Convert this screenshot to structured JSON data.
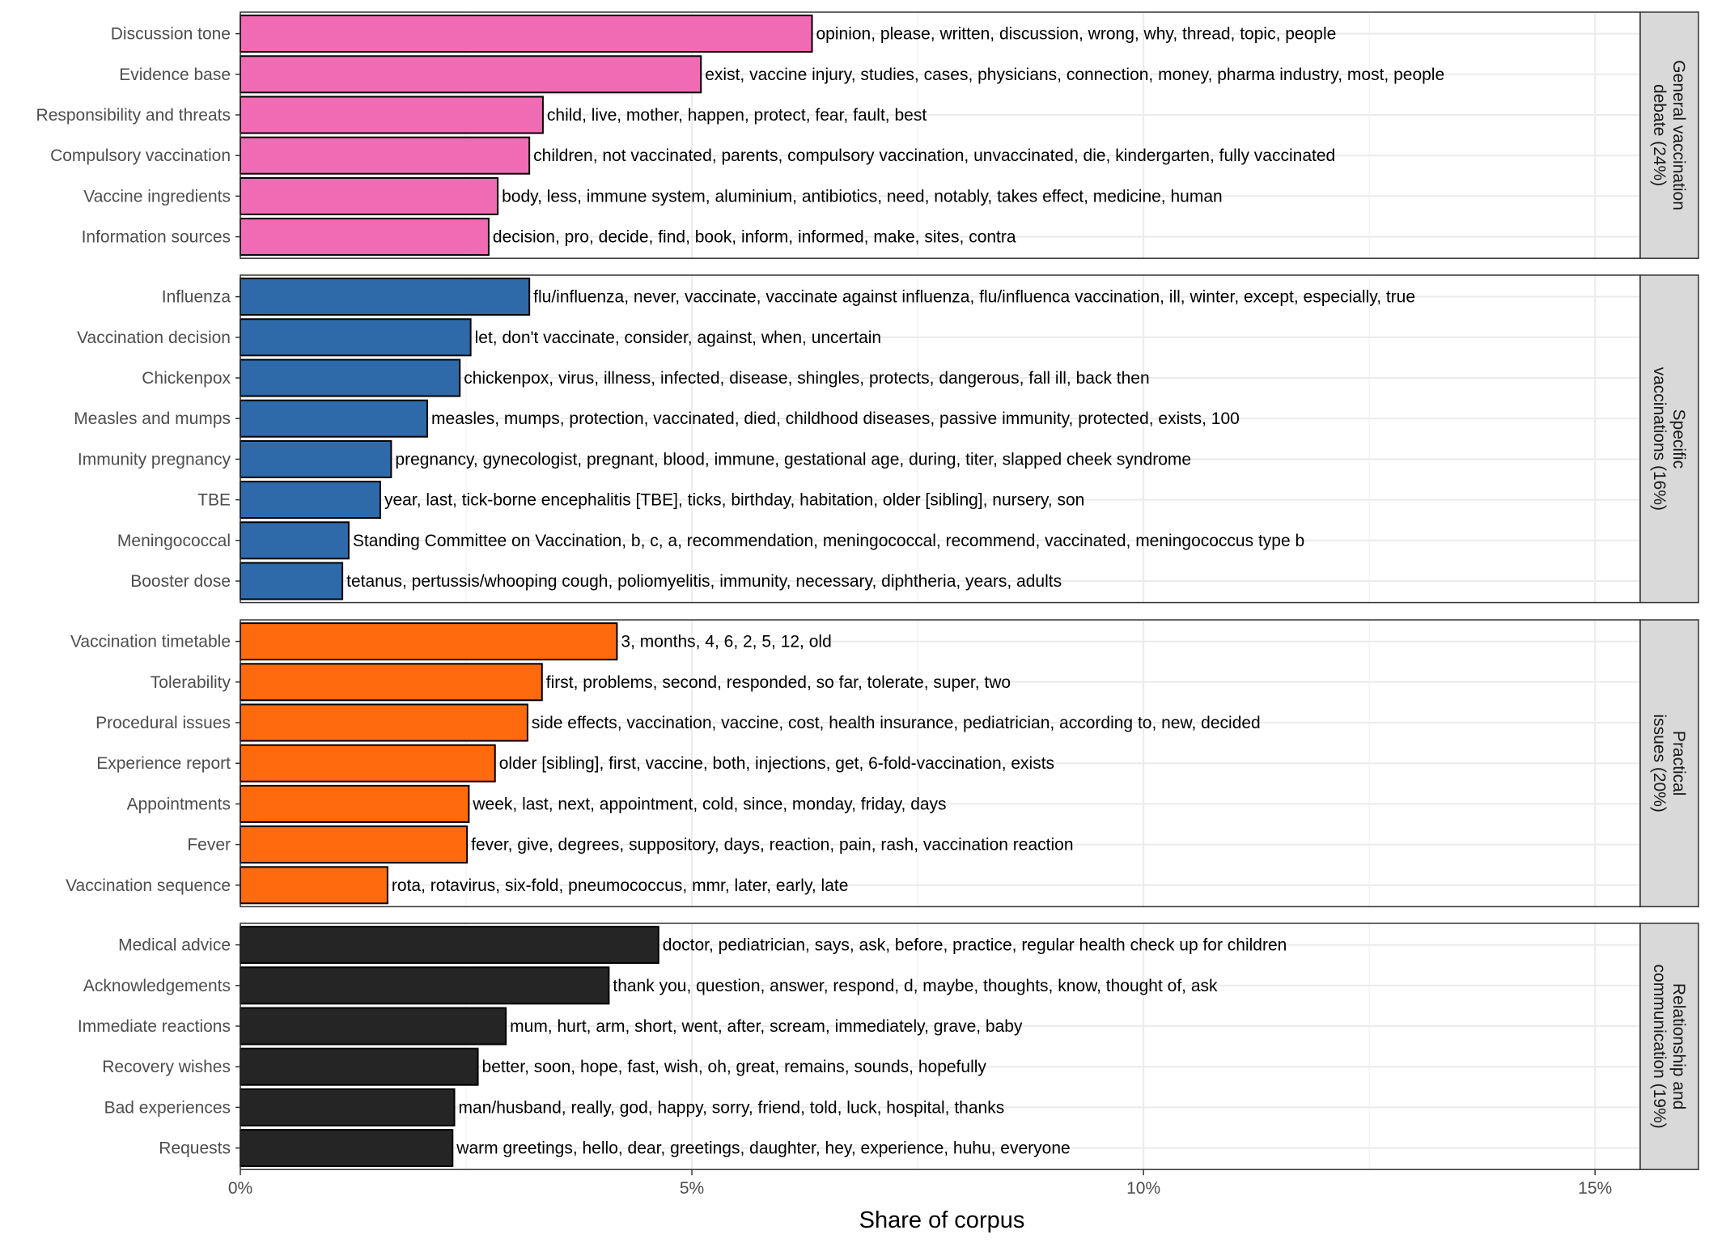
{
  "chart_data": {
    "type": "bar",
    "orientation": "horizontal",
    "xlabel": "Share of corpus",
    "xlim": [
      0,
      15.5
    ],
    "xticks": [
      0,
      5,
      10,
      15
    ],
    "xtick_labels": [
      "0%",
      "5%",
      "10%",
      "15%"
    ],
    "grid": true,
    "panels": [
      {
        "name": "General vaccination debate (24%)",
        "strip_lines": [
          "General vaccination",
          "debate (24%)"
        ],
        "color": "#F06BB3",
        "categories": [
          "Discussion tone",
          "Evidence base",
          "Responsibility and threats",
          "Compulsory vaccination",
          "Vaccine ingredients",
          "Information sources"
        ],
        "values": [
          6.33,
          5.1,
          3.35,
          3.2,
          2.85,
          2.75
        ],
        "labels": [
          "opinion, please, written, discussion, wrong, why, thread, topic, people",
          "exist, vaccine injury, studies, cases, physicians, connection, money, pharma industry, most, people",
          "child, live, mother, happen, protect, fear, fault, best",
          "children, not vaccinated, parents, compulsory vaccination, unvaccinated, die, kindergarten, fully vaccinated",
          "body, less, immune system, aluminium, antibiotics, need, notably, takes effect, medicine, human",
          "decision, pro, decide, find, book, inform, informed, make, sites, contra"
        ]
      },
      {
        "name": "Specific vaccinations (16%)",
        "strip_lines": [
          "Specific",
          "vaccinations (16%)"
        ],
        "color": "#2E6AAA",
        "categories": [
          "Influenza",
          "Vaccination decision",
          "Chickenpox",
          "Measles and mumps",
          "Immunity pregnancy",
          "TBE",
          "Meningococcal",
          "Booster dose"
        ],
        "values": [
          3.2,
          2.55,
          2.43,
          2.07,
          1.67,
          1.55,
          1.2,
          1.13
        ],
        "labels": [
          "flu/influenza, never, vaccinate, vaccinate against influenza, flu/influenca vaccination, ill, winter, except, especially, true",
          "let, don't vaccinate, consider, against, when, uncertain",
          "chickenpox, virus, illness, infected, disease, shingles, protects, dangerous, fall ill, back then",
          "measles, mumps, protection, vaccinated, died, childhood diseases, passive immunity, protected, exists, 100",
          "pregnancy, gynecologist, pregnant, blood, immune, gestational age, during, titer, slapped cheek syndrome",
          "year, last, tick-borne encephalitis [TBE], ticks, birthday, habitation, older [sibling], nursery, son",
          "Standing Committee on Vaccination, b, c, a, recommendation, meningococcal, recommend, vaccinated, meningococcus type b",
          "tetanus, pertussis/whooping cough, poliomyelitis, immunity, necessary, diphtheria, years, adults"
        ]
      },
      {
        "name": "Practical issues (20%)",
        "strip_lines": [
          "Practical",
          "issues (20%)"
        ],
        "color": "#FF6A0E",
        "categories": [
          "Vaccination timetable",
          "Tolerability",
          "Procedural issues",
          "Experience report",
          "Appointments",
          "Fever",
          "Vaccination sequence"
        ],
        "values": [
          4.17,
          3.34,
          3.18,
          2.82,
          2.53,
          2.51,
          1.63
        ],
        "labels": [
          "3, months, 4, 6, 2, 5, 12, old",
          "first, problems, second, responded, so far, tolerate, super, two",
          "side effects, vaccination, vaccine, cost, health insurance, pediatrician, according to, new, decided",
          "older [sibling], first, vaccine, both, injections, get, 6-fold-vaccination, exists",
          "week, last, next, appointment, cold, since, monday, friday, days",
          "fever, give, degrees, suppository, days, reaction, pain, rash, vaccination reaction",
          "rota, rotavirus, six-fold, pneumococcus, mmr, later, early, late"
        ]
      },
      {
        "name": "Relationship and communication (19%)",
        "strip_lines": [
          "Relationship and",
          "communication (19%)"
        ],
        "color": "#252525",
        "categories": [
          "Medical advice",
          "Acknowledgements",
          "Immediate reactions",
          "Recovery wishes",
          "Bad experiences",
          "Requests"
        ],
        "values": [
          4.63,
          4.08,
          2.94,
          2.63,
          2.37,
          2.35
        ],
        "labels": [
          "doctor, pediatrician, says, ask, before, practice, regular health check up for children",
          "thank you, question, answer, respond, d, maybe, thoughts, know, thought of, ask",
          "mum, hurt, arm, short, went, after, scream, immediately, grave, baby",
          "better, soon, hope, fast, wish, oh, great, remains, sounds, hopefully",
          "man/husband, really, god, happy, sorry, friend, told, luck, hospital, thanks",
          "warm greetings, hello, dear, greetings, daughter, hey, experience, huhu, everyone"
        ]
      }
    ]
  }
}
